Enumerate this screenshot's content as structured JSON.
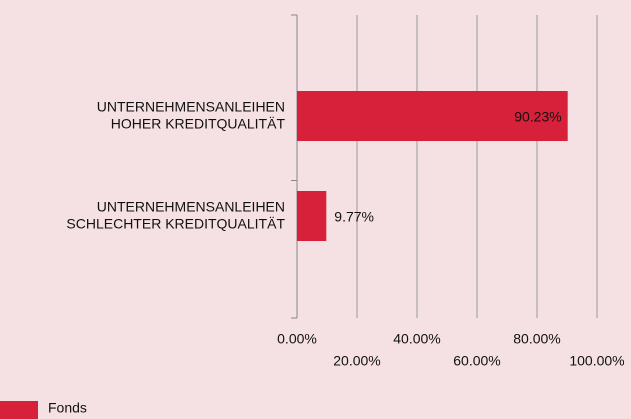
{
  "chart_data": {
    "type": "barh",
    "categories": [
      "UNTERNEHMENSANLEIHEN\nHOHER KREDITQUALITÄT",
      "UNTERNEHMENSANLEIHEN\nSCHLECHTER KREDITQUALITÄT"
    ],
    "series": [
      {
        "name": "Fonds",
        "color": "#d7213a",
        "values": [
          90.23,
          9.77
        ],
        "value_labels": [
          "90.23%",
          "9.77%"
        ]
      }
    ],
    "xlim": [
      0,
      100
    ],
    "xticks": [
      {
        "value": 0,
        "label": "0.00%"
      },
      {
        "value": 20,
        "label": "20.00%"
      },
      {
        "value": 40,
        "label": "40.00%"
      },
      {
        "value": 60,
        "label": "60.00%"
      },
      {
        "value": 80,
        "label": "80.00%"
      },
      {
        "value": 100,
        "label": "100.00%"
      }
    ],
    "grid": true
  }
}
